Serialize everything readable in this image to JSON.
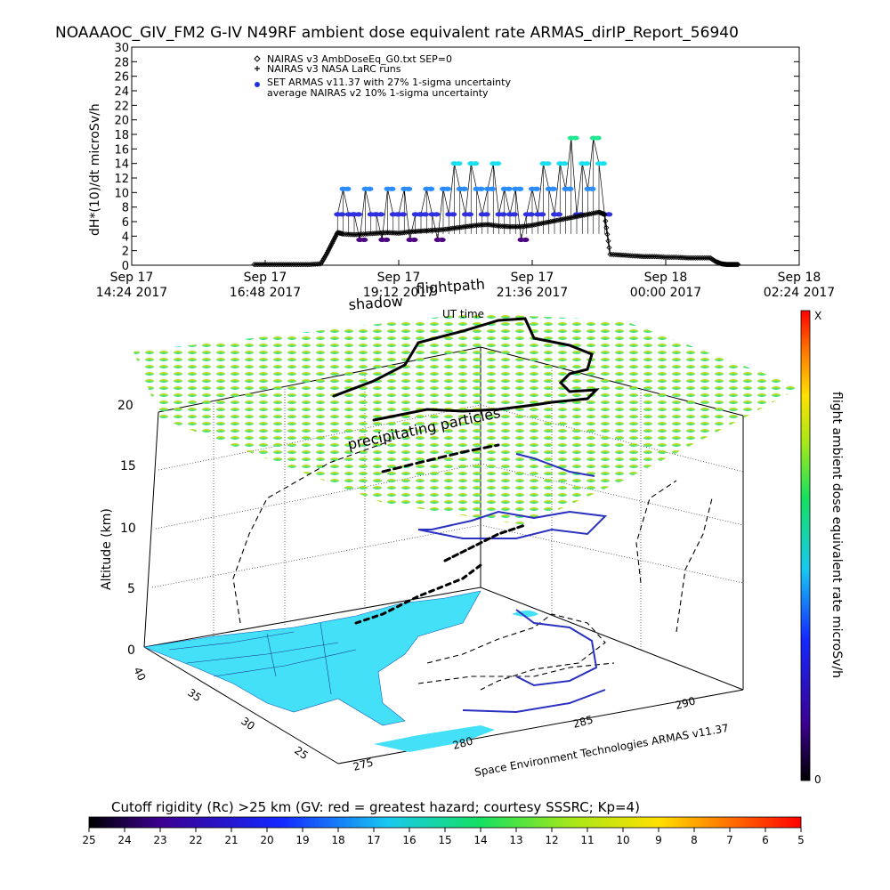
{
  "title": "NOAAAOC_GIV_FM2 G-IV   N49RF  ambient dose equivalent rate ARMAS_dirIP_Report_56940",
  "chart_data": [
    {
      "type": "line",
      "ylabel": "dH*(10)/dt microSv/h",
      "ylim": [
        0,
        30
      ],
      "y_ticks": [
        "0",
        "2",
        "4",
        "6",
        "8",
        "10",
        "12",
        "14",
        "16",
        "18",
        "20",
        "22",
        "24",
        "26",
        "28",
        "30"
      ],
      "x_ticks": [
        {
          "day": "Sep 17",
          "time": "14:24 2017"
        },
        {
          "day": "Sep 17",
          "time": "16:48 2017"
        },
        {
          "day": "Sep 17",
          "time": "19:12 2017"
        },
        {
          "day": "Sep 17",
          "time": "21:36 2017"
        },
        {
          "day": "Sep 18",
          "time": "00:00 2017"
        },
        {
          "day": "Sep 18",
          "time": "02:24 2017"
        }
      ],
      "x_hours_range": [
        14.4,
        26.4
      ],
      "legend": [
        {
          "symbol": "diamond",
          "label": "NAIRAS v3 AmbDoseEq_G0.txt SEP=0"
        },
        {
          "symbol": "plus",
          "label": "NAIRAS v3 NASA LaRC runs"
        },
        {
          "symbol": "dot",
          "label": "SET ARMAS v11.37 with 27% 1-sigma uncertainty"
        },
        {
          "symbol": "none",
          "label": "average NAIRAS v2 10% 1-sigma uncertainty"
        }
      ],
      "series": [
        {
          "name": "NAIRAS v3 AmbDoseEq_G0.txt SEP=0",
          "x_hours": [
            16.6,
            16.8,
            17.0,
            17.2,
            17.4,
            17.6,
            17.8,
            17.9,
            18.0,
            18.1,
            18.2,
            18.4,
            18.6,
            18.8,
            19.0,
            19.2,
            19.4,
            19.6,
            19.8,
            20.0,
            20.2,
            20.4,
            20.6,
            20.8,
            21.0,
            21.2,
            21.4,
            21.6,
            21.8,
            22.0,
            22.2,
            22.4,
            22.6,
            22.8,
            22.9,
            23.0,
            23.2,
            23.4,
            23.6,
            23.8,
            24.0,
            24.2,
            24.4,
            24.6,
            24.8,
            24.9,
            25.0,
            25.1,
            25.2,
            25.3
          ],
          "values": [
            0.1,
            0.1,
            0.1,
            0.1,
            0.1,
            0.1,
            0.2,
            1.5,
            3.0,
            4.5,
            4.3,
            4.2,
            4.3,
            4.4,
            4.5,
            4.4,
            4.6,
            4.7,
            4.8,
            4.9,
            5.1,
            5.3,
            5.5,
            5.6,
            5.4,
            5.3,
            5.3,
            5.5,
            5.8,
            6.1,
            6.4,
            6.7,
            7.0,
            7.3,
            7.0,
            1.5,
            1.4,
            1.3,
            1.2,
            1.2,
            1.1,
            1.1,
            1.0,
            1.0,
            1.0,
            0.5,
            0.2,
            0.1,
            0.1,
            0.1
          ]
        },
        {
          "name": "SET ARMAS v11.37 with 27% 1-sigma uncertainty",
          "x_hours": [
            18.1,
            18.2,
            18.3,
            18.4,
            18.5,
            18.6,
            18.7,
            18.8,
            18.9,
            19.0,
            19.1,
            19.2,
            19.3,
            19.4,
            19.5,
            19.6,
            19.7,
            19.8,
            19.9,
            20.0,
            20.1,
            20.2,
            20.3,
            20.4,
            20.5,
            20.6,
            20.7,
            20.8,
            20.9,
            21.0,
            21.1,
            21.2,
            21.3,
            21.4,
            21.5,
            21.6,
            21.7,
            21.8,
            21.9,
            22.0,
            22.1,
            22.2,
            22.3,
            22.4,
            22.5,
            22.6,
            22.7,
            22.8,
            22.9
          ],
          "values": [
            7,
            10.5,
            7,
            7,
            3.5,
            10.5,
            7,
            7,
            3.5,
            10.5,
            7,
            7,
            10.5,
            3.5,
            7,
            7,
            10.5,
            7,
            3.5,
            10.5,
            7,
            14,
            10.5,
            7,
            14,
            10.5,
            7,
            10.5,
            14,
            7,
            10.5,
            7,
            10.5,
            3.5,
            7,
            10.5,
            7,
            14,
            10.5,
            7,
            14,
            10.5,
            17.5,
            7,
            14,
            10.5,
            17.5,
            14,
            7
          ]
        }
      ]
    },
    {
      "type": "scatter",
      "labels": {
        "shadow": "shadow",
        "flightpath": "flightpath",
        "ut_time": "UT time",
        "precip": "precipitating particles"
      },
      "zlabel": "Altitude (km)",
      "z_ticks": [
        "0",
        "5",
        "10",
        "15",
        "20"
      ],
      "lat_ticks": [
        "40",
        "35",
        "30",
        "25"
      ],
      "lon_ticks": [
        "275",
        "280",
        "285",
        "290"
      ],
      "credit": "Space Environment Technologies ARMAS v11.37",
      "colorbar": {
        "label": "flight ambient dose equivalent rate microSv/h",
        "top": "X",
        "bottom": "0"
      }
    }
  ],
  "rigidity_bar": {
    "title": "Cutoff rigidity (Rc) >25 km (GV: red = greatest hazard; courtesy SSSRC; Kp=4)",
    "ticks": [
      "25",
      "24",
      "23",
      "22",
      "21",
      "20",
      "19",
      "18",
      "17",
      "16",
      "15",
      "14",
      "13",
      "12",
      "11",
      "10",
      "9",
      "8",
      "7",
      "6",
      "5"
    ]
  },
  "colors": {
    "diamond": "#000000",
    "armas_purple": "#4a0080",
    "armas_blue": "#3030e0",
    "armas_lblue": "#2b8cff",
    "armas_cyan": "#19e0f0",
    "armas_green": "#20e890",
    "land": "#44e0f8",
    "grid_dot": "#555555"
  }
}
